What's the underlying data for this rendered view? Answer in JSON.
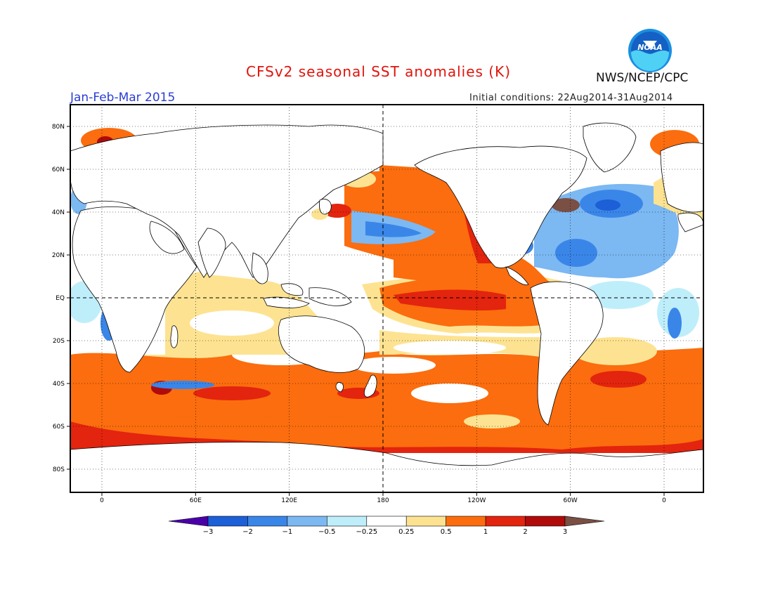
{
  "header": {
    "title": "CFSv2 seasonal SST anomalies (K)",
    "period": "Jan-Feb-Mar 2015",
    "initial_conditions": "Initial conditions: 22Aug2014-31Aug2014",
    "agency": "NWS/NCEP/CPC",
    "logo_text": "NOAA"
  },
  "map": {
    "projection": "equirectangular",
    "lon_ticks": [
      "0",
      "60E",
      "120E",
      "180",
      "120W",
      "60W",
      "0"
    ],
    "lat_ticks": [
      "80N",
      "60N",
      "40N",
      "20N",
      "EQ",
      "20S",
      "40S",
      "60S",
      "80S"
    ],
    "reference_lines": [
      "EQ",
      "180"
    ]
  },
  "colorbar": {
    "labels": [
      "-3",
      "-2",
      "-1",
      "-0.5",
      "-0.25",
      "0.25",
      "0.5",
      "1",
      "2",
      "3"
    ],
    "colors": [
      "#4a00a8",
      "#1c5fd6",
      "#3a86e8",
      "#7cb8f2",
      "#bfeefb",
      "#ffffff",
      "#fde391",
      "#fb6d0e",
      "#e3240e",
      "#b00a0a",
      "#7a4f44"
    ]
  },
  "colors": {
    "title": "#e0140c",
    "period": "#2a3cd6",
    "land": "#ffffff",
    "coast": "#000000"
  }
}
